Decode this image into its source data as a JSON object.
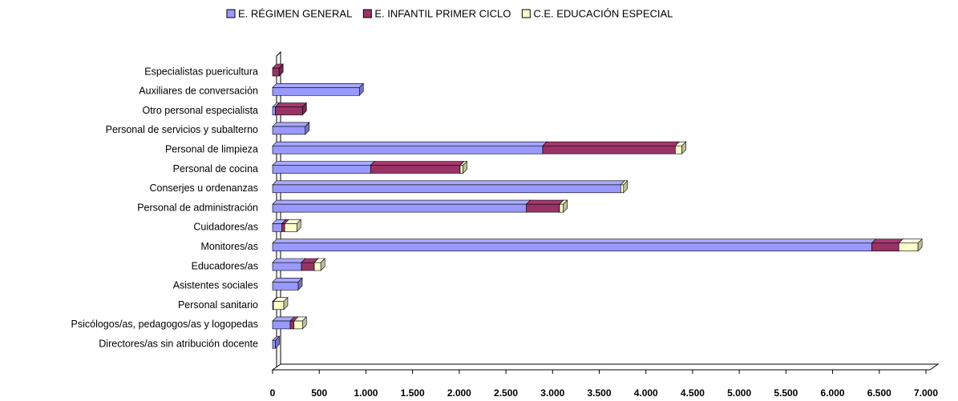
{
  "chart_data": {
    "type": "bar",
    "orientation": "horizontal",
    "stacked": true,
    "categories": [
      "Especialistas puericultura",
      "Auxiliares de conversación",
      "Otro personal especialista",
      "Personal de servicios y subalterno",
      "Personal de limpieza",
      "Personal de cocina",
      "Conserjes u ordenanzas",
      "Personal de administración",
      "Cuidadores/as",
      "Monitores/as",
      "Educadores/as",
      "Asistentes sociales",
      "Personal sanitario",
      "Psicólogos/as, pedagogos/as y logopedas",
      "Directores/as sin atribución docente"
    ],
    "series": [
      {
        "name": "E. RÉGIMEN GENERAL",
        "color": "#9999ff",
        "values": [
          0,
          930,
          30,
          350,
          2895,
          1050,
          3730,
          2720,
          100,
          6420,
          310,
          275,
          10,
          190,
          30
        ]
      },
      {
        "name": "E. INFANTIL PRIMER CICLO",
        "color": "#993366",
        "values": [
          70,
          0,
          290,
          0,
          1420,
          960,
          0,
          355,
          30,
          290,
          137,
          0,
          0,
          40,
          0
        ]
      },
      {
        "name": "C.E. EDUCACIÓN ESPECIAL",
        "color": "#ffffcc",
        "values": [
          0,
          0,
          0,
          0,
          70,
          30,
          30,
          40,
          130,
          205,
          70,
          0,
          110,
          90,
          0
        ]
      }
    ],
    "xlim": [
      0,
      7000
    ],
    "xticks": [
      0,
      500,
      {
        "value": 1000,
        "label": "1.000"
      },
      {
        "value": 1500,
        "label": "1.500"
      },
      {
        "value": 2000,
        "label": "2.000"
      },
      {
        "value": 2500,
        "label": "2.500"
      },
      {
        "value": 3000,
        "label": "3.000"
      },
      {
        "value": 3500,
        "label": "3.500"
      },
      {
        "value": 4000,
        "label": "4.000"
      },
      {
        "value": 4500,
        "label": "4.500"
      },
      {
        "value": 5000,
        "label": "5.000"
      },
      {
        "value": 5500,
        "label": "5.500"
      },
      {
        "value": 6000,
        "label": "6.000"
      },
      {
        "value": 6500,
        "label": "6.500"
      },
      {
        "value": 7000,
        "label": "7.000"
      }
    ],
    "legend": "top"
  }
}
